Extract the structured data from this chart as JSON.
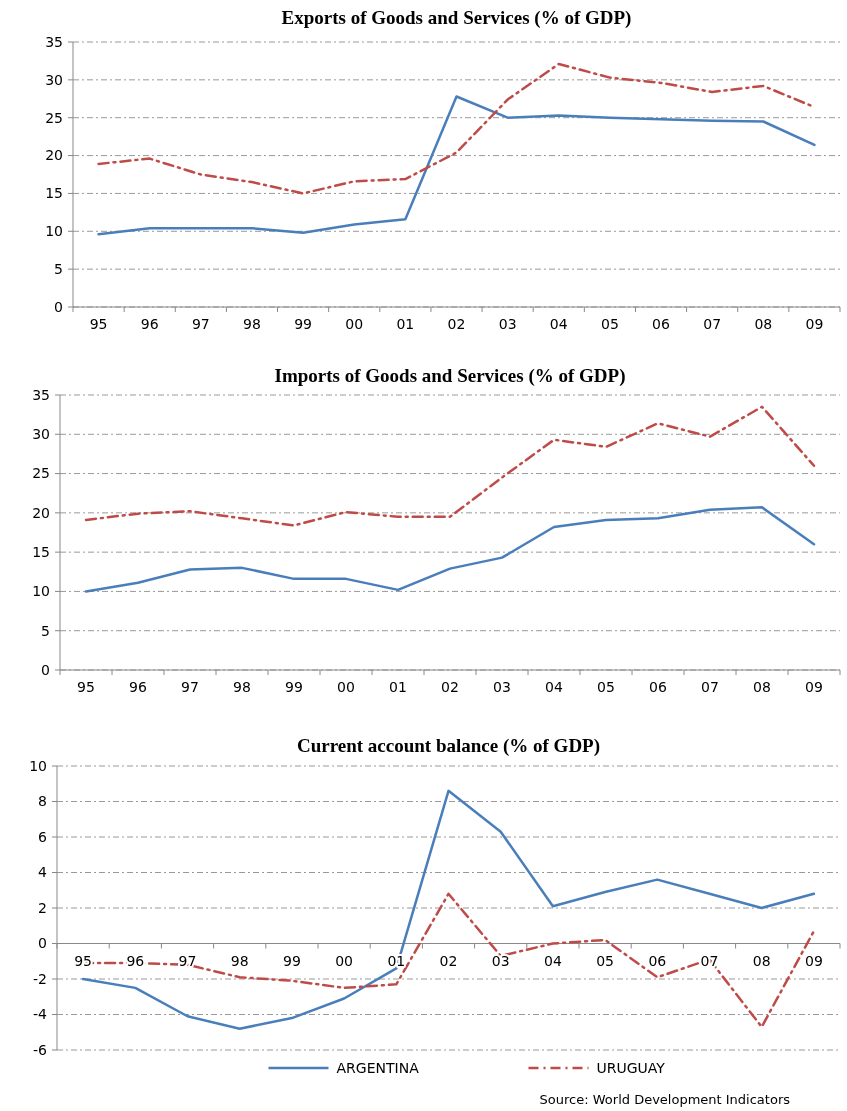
{
  "chart_data": [
    {
      "type": "line",
      "title": "Exports of Goods and Services (% of GDP)",
      "categories": [
        "95",
        "96",
        "97",
        "98",
        "99",
        "00",
        "01",
        "02",
        "03",
        "04",
        "05",
        "06",
        "07",
        "08",
        "09"
      ],
      "series": [
        {
          "color": "#4a7ebb",
          "line_style": "solid",
          "values": [
            9.6,
            10.4,
            10.4,
            10.4,
            9.8,
            10.9,
            11.6,
            27.8,
            25.0,
            25.3,
            25.0,
            24.8,
            24.6,
            24.5,
            21.4
          ]
        },
        {
          "color": "#be4b48",
          "line_style": "dashed",
          "values": [
            18.9,
            19.6,
            17.5,
            16.5,
            15.0,
            16.6,
            16.9,
            20.4,
            27.4,
            32.1,
            30.3,
            29.6,
            28.4,
            29.2,
            26.4
          ]
        }
      ],
      "ylim": [
        0,
        35
      ],
      "yticks": [
        0,
        5,
        10,
        15,
        20,
        25,
        30,
        35
      ],
      "grid": "y",
      "legend": false,
      "marker": "none"
    },
    {
      "type": "line",
      "title": "Imports of Goods and Services (% of GDP)",
      "categories": [
        "95",
        "96",
        "97",
        "98",
        "99",
        "00",
        "01",
        "02",
        "03",
        "04",
        "05",
        "06",
        "07",
        "08",
        "09"
      ],
      "series": [
        {
          "color": "#4a7ebb",
          "line_style": "solid",
          "values": [
            10.0,
            11.1,
            12.8,
            13.0,
            11.6,
            11.6,
            10.2,
            12.9,
            14.3,
            18.2,
            19.1,
            19.3,
            20.4,
            20.7,
            16.0
          ]
        },
        {
          "color": "#be4b48",
          "line_style": "dashed",
          "values": [
            19.1,
            19.9,
            20.2,
            19.3,
            18.4,
            20.1,
            19.5,
            19.5,
            24.5,
            29.3,
            28.4,
            31.4,
            29.7,
            33.5,
            26.0
          ]
        }
      ],
      "ylim": [
        0,
        35
      ],
      "yticks": [
        0,
        5,
        10,
        15,
        20,
        25,
        30,
        35
      ],
      "grid": "y",
      "legend": false,
      "marker": "none"
    },
    {
      "type": "line",
      "title": "Current account balance (% of GDP)",
      "categories": [
        "95",
        "96",
        "97",
        "98",
        "99",
        "00",
        "01",
        "02",
        "03",
        "04",
        "05",
        "06",
        "07",
        "08",
        "09"
      ],
      "series": [
        {
          "name": "ARGENTINA",
          "color": "#4a7ebb",
          "line_style": "solid",
          "values": [
            -2.0,
            -2.5,
            -4.1,
            -4.8,
            -4.2,
            -3.1,
            -1.4,
            8.6,
            6.3,
            2.1,
            2.9,
            3.6,
            2.8,
            2.0,
            2.8
          ]
        },
        {
          "name": "URUGUAY",
          "color": "#be4b48",
          "line_style": "dashed",
          "values": [
            -1.1,
            -1.1,
            -1.2,
            -1.9,
            -2.1,
            -2.5,
            -2.3,
            2.8,
            -0.7,
            0.0,
            0.2,
            -1.9,
            -0.9,
            -4.7,
            0.7
          ]
        }
      ],
      "ylim": [
        -6,
        10
      ],
      "yticks": [
        -6,
        -4,
        -2,
        0,
        2,
        4,
        6,
        8,
        10
      ],
      "grid": "y",
      "legend": "bottom",
      "marker": "none",
      "annotations": [
        "Source: World Development Indicators"
      ]
    }
  ]
}
